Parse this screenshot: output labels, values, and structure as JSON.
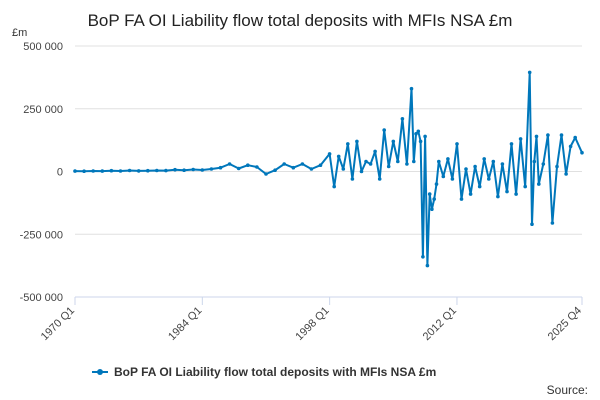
{
  "chart_data": {
    "type": "line",
    "title": "BoP FA OI Liability flow total deposits with MFIs NSA £m",
    "unit_label": "£m",
    "source_label": "Source:",
    "xlabel": "",
    "ylabel": "",
    "ylim": [
      -500000,
      500000
    ],
    "y_ticks": [
      500000,
      250000,
      0,
      -250000,
      -500000
    ],
    "y_tick_labels": [
      "500 000",
      "250 000",
      "0",
      "-250 000",
      "-500 000"
    ],
    "x_range": [
      "1970 Q1",
      "2025 Q4"
    ],
    "x_tick_labels": [
      "1970 Q1",
      "1984 Q1",
      "1998 Q1",
      "2012 Q1",
      "2025 Q4"
    ],
    "x_tick_values": [
      1970.0,
      1984.0,
      1998.0,
      2012.0,
      2025.75
    ],
    "grid": true,
    "legend_position": "bottom-center",
    "color": "#0077bb",
    "series": [
      {
        "name": "BoP FA OI Liability flow total deposits with MFIs NSA £m",
        "points": [
          [
            1970.0,
            1500
          ],
          [
            1971.0,
            1000
          ],
          [
            1972.0,
            2000
          ],
          [
            1973.0,
            1500
          ],
          [
            1974.0,
            3000
          ],
          [
            1975.0,
            2000
          ],
          [
            1976.0,
            4000
          ],
          [
            1977.0,
            2500
          ],
          [
            1978.0,
            3000
          ],
          [
            1979.0,
            4000
          ],
          [
            1980.0,
            3500
          ],
          [
            1981.0,
            7000
          ],
          [
            1982.0,
            5000
          ],
          [
            1983.0,
            8000
          ],
          [
            1984.0,
            6000
          ],
          [
            1985.0,
            10000
          ],
          [
            1986.0,
            15000
          ],
          [
            1987.0,
            30000
          ],
          [
            1988.0,
            12000
          ],
          [
            1989.0,
            25000
          ],
          [
            1990.0,
            18000
          ],
          [
            1991.0,
            -10000
          ],
          [
            1992.0,
            5000
          ],
          [
            1993.0,
            30000
          ],
          [
            1994.0,
            15000
          ],
          [
            1995.0,
            30000
          ],
          [
            1996.0,
            10000
          ],
          [
            1997.0,
            25000
          ],
          [
            1998.0,
            70000
          ],
          [
            1998.5,
            -60000
          ],
          [
            1999.0,
            60000
          ],
          [
            1999.5,
            10000
          ],
          [
            2000.0,
            110000
          ],
          [
            2000.5,
            -30000
          ],
          [
            2001.0,
            120000
          ],
          [
            2001.5,
            0
          ],
          [
            2002.0,
            40000
          ],
          [
            2002.5,
            30000
          ],
          [
            2003.0,
            80000
          ],
          [
            2003.5,
            -30000
          ],
          [
            2004.0,
            165000
          ],
          [
            2004.5,
            20000
          ],
          [
            2005.0,
            120000
          ],
          [
            2005.5,
            40000
          ],
          [
            2006.0,
            210000
          ],
          [
            2006.5,
            30000
          ],
          [
            2007.0,
            330000
          ],
          [
            2007.25,
            40000
          ],
          [
            2007.5,
            150000
          ],
          [
            2007.75,
            160000
          ],
          [
            2008.0,
            120000
          ],
          [
            2008.25,
            -340000
          ],
          [
            2008.5,
            140000
          ],
          [
            2008.75,
            -375000
          ],
          [
            2009.0,
            -90000
          ],
          [
            2009.25,
            -150000
          ],
          [
            2009.5,
            -110000
          ],
          [
            2009.75,
            -50000
          ],
          [
            2010.0,
            40000
          ],
          [
            2010.5,
            -20000
          ],
          [
            2011.0,
            50000
          ],
          [
            2011.5,
            -30000
          ],
          [
            2012.0,
            110000
          ],
          [
            2012.5,
            -110000
          ],
          [
            2013.0,
            10000
          ],
          [
            2013.5,
            -90000
          ],
          [
            2014.0,
            20000
          ],
          [
            2014.5,
            -60000
          ],
          [
            2015.0,
            50000
          ],
          [
            2015.5,
            -30000
          ],
          [
            2016.0,
            40000
          ],
          [
            2016.5,
            -100000
          ],
          [
            2017.0,
            30000
          ],
          [
            2017.5,
            -80000
          ],
          [
            2018.0,
            110000
          ],
          [
            2018.5,
            -90000
          ],
          [
            2019.0,
            130000
          ],
          [
            2019.5,
            -60000
          ],
          [
            2020.0,
            395000
          ],
          [
            2020.25,
            -210000
          ],
          [
            2020.5,
            40000
          ],
          [
            2020.75,
            140000
          ],
          [
            2021.0,
            -50000
          ],
          [
            2021.5,
            30000
          ],
          [
            2022.0,
            145000
          ],
          [
            2022.5,
            -205000
          ],
          [
            2023.0,
            20000
          ],
          [
            2023.5,
            145000
          ],
          [
            2024.0,
            -10000
          ],
          [
            2024.5,
            100000
          ],
          [
            2025.0,
            135000
          ],
          [
            2025.75,
            75000
          ]
        ]
      }
    ]
  }
}
